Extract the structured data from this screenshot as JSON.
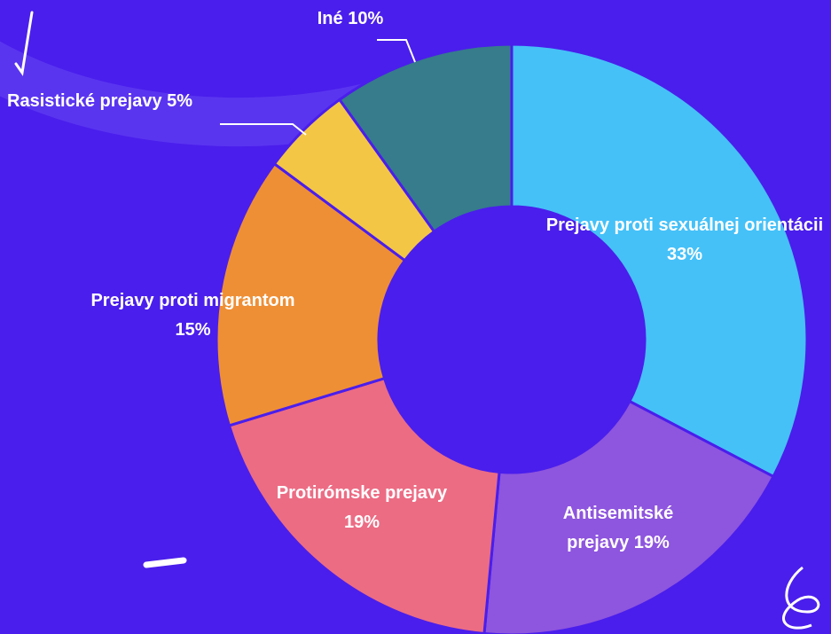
{
  "chart_data": {
    "type": "donut",
    "categories": [
      "Prejavy proti sexuálnej orientácii",
      "Antisemitské prejavy",
      "Protirómske prejavy",
      "Prejavy proti migrantom",
      "Rasistické prejavy",
      "Iné"
    ],
    "values": [
      33,
      19,
      19,
      15,
      5,
      10
    ],
    "value_labels": [
      "33%",
      "19%",
      "19%",
      "15%",
      "5%",
      "10%"
    ],
    "colors": [
      "#45c1f8",
      "#8e55de",
      "#ec6c84",
      "#ef8f35",
      "#f4c646",
      "#367c8c"
    ]
  }
}
